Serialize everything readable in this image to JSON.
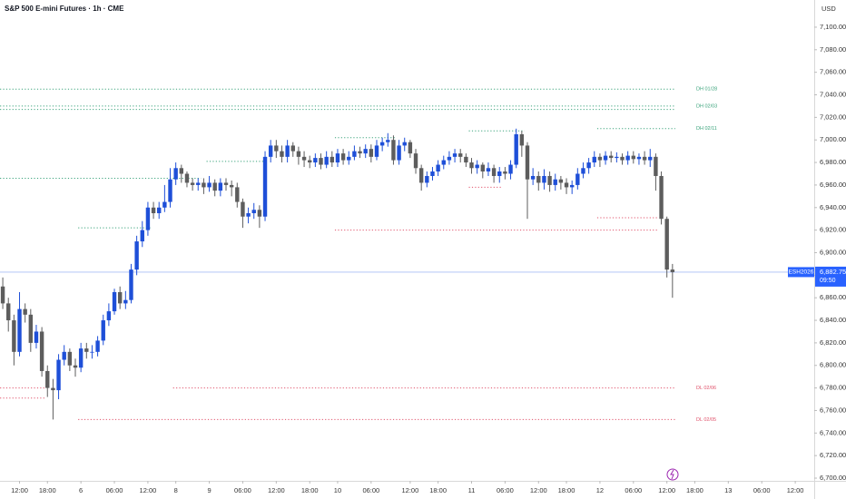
{
  "chart_data": {
    "type": "candlestick",
    "title": "S&P 500 E-mini Futures · 1h · CME",
    "currency": "USD",
    "up_color": "#1e4fd8",
    "down_color": "#5d5d5d",
    "x": [
      0,
      1,
      2,
      3,
      4,
      5,
      6,
      7,
      8,
      9,
      10,
      11,
      12,
      13,
      14,
      15,
      16,
      17,
      18,
      19,
      20,
      21,
      22,
      23,
      24,
      25,
      26,
      27,
      28,
      29,
      30,
      31,
      32,
      33,
      34,
      35,
      36,
      37,
      38,
      39,
      40,
      41,
      42,
      43,
      44,
      45,
      46,
      47,
      48,
      49,
      50,
      51,
      52,
      53,
      54,
      55,
      56,
      57,
      58,
      59,
      60,
      61,
      62,
      63,
      64,
      65,
      66,
      67,
      68,
      69,
      70,
      71,
      72,
      73,
      74,
      75,
      76,
      77,
      78,
      79,
      80,
      81,
      82,
      83,
      84,
      85,
      86,
      87,
      88,
      89,
      90,
      91,
      92,
      93,
      94,
      95,
      96,
      97,
      98,
      99,
      100,
      101,
      102,
      103,
      104,
      105,
      106,
      107,
      108,
      109,
      110,
      111,
      112,
      113,
      114,
      115,
      116,
      117,
      118,
      119,
      120
    ],
    "open": [
      6870,
      6855,
      6840,
      6812,
      6850,
      6845,
      6820,
      6830,
      6795,
      6780,
      6778,
      6805,
      6812,
      6800,
      6798,
      6815,
      6812,
      6812,
      6822,
      6840,
      6848,
      6865,
      6855,
      6858,
      6885,
      6910,
      6920,
      6940,
      6935,
      6940,
      6945,
      6965,
      6975,
      6970,
      6962,
      6960,
      6962,
      6958,
      6962,
      6955,
      6962,
      6960,
      6958,
      6945,
      6932,
      6935,
      6938,
      6932,
      6985,
      6995,
      6990,
      6985,
      6995,
      6990,
      6985,
      6982,
      6980,
      6984,
      6978,
      6985,
      6980,
      6988,
      6982,
      6985,
      6990,
      6988,
      6992,
      6985,
      6995,
      6998,
      7000,
      6982,
      6995,
      6998,
      6988,
      6975,
      6962,
      6968,
      6972,
      6978,
      6982,
      6985,
      6988,
      6985,
      6980,
      6975,
      6978,
      6972,
      6975,
      6968,
      6972,
      6970,
      6978,
      7005,
      6995,
      6965,
      6968,
      6962,
      6968,
      6960,
      6965,
      6962,
      6958,
      6960,
      6970,
      6975,
      6980,
      6985,
      6982,
      6986,
      6984,
      6985,
      6982,
      6986,
      6983,
      6985,
      6982,
      6985,
      6968,
      6930,
      6885
    ],
    "high": [
      6878,
      6860,
      6845,
      6865,
      6855,
      6850,
      6836,
      6834,
      6800,
      6788,
      6810,
      6818,
      6815,
      6806,
      6820,
      6820,
      6818,
      6826,
      6845,
      6855,
      6868,
      6870,
      6866,
      6890,
      6915,
      6928,
      6945,
      6945,
      6945,
      6960,
      6975,
      6980,
      6978,
      6972,
      6966,
      6966,
      6966,
      6968,
      6965,
      6966,
      6966,
      6964,
      6962,
      6948,
      6940,
      6944,
      6942,
      6990,
      7000,
      7000,
      6995,
      7000,
      6998,
      6994,
      6990,
      6986,
      6988,
      6988,
      6990,
      6990,
      6992,
      6992,
      6990,
      6995,
      6994,
      6996,
      6996,
      7000,
      7002,
      7006,
      7004,
      7000,
      7002,
      7000,
      6992,
      6978,
      6972,
      6976,
      6982,
      6986,
      6990,
      6992,
      6992,
      6988,
      6984,
      6982,
      6980,
      6980,
      6978,
      6976,
      6976,
      6982,
      7010,
      7008,
      6998,
      6975,
      6972,
      6974,
      6972,
      6970,
      6968,
      6966,
      6964,
      6975,
      6980,
      6984,
      6990,
      6988,
      6990,
      6990,
      6989,
      6988,
      6990,
      6990,
      6988,
      6990,
      6992,
      6988,
      6972,
      6932,
      6890
    ],
    "low": [
      6850,
      6830,
      6800,
      6808,
      6838,
      6812,
      6815,
      6790,
      6772,
      6752,
      6770,
      6800,
      6795,
      6790,
      6794,
      6806,
      6806,
      6808,
      6818,
      6835,
      6845,
      6850,
      6850,
      6855,
      6880,
      6905,
      6915,
      6930,
      6930,
      6936,
      6940,
      6960,
      6962,
      6958,
      6955,
      6955,
      6952,
      6954,
      6950,
      6950,
      6955,
      6950,
      6940,
      6922,
      6926,
      6930,
      6922,
      6928,
      6980,
      6984,
      6980,
      6980,
      6985,
      6978,
      6976,
      6975,
      6976,
      6974,
      6975,
      6976,
      6976,
      6978,
      6978,
      6982,
      6984,
      6984,
      6980,
      6982,
      6990,
      6994,
      6978,
      6978,
      6990,
      6984,
      6970,
      6955,
      6958,
      6964,
      6968,
      6974,
      6978,
      6980,
      6980,
      6976,
      6970,
      6970,
      6966,
      6968,
      6962,
      6962,
      6965,
      6965,
      6975,
      6985,
      6930,
      6960,
      6955,
      6956,
      6954,
      6955,
      6956,
      6952,
      6952,
      6956,
      6966,
      6970,
      6976,
      6976,
      6978,
      6980,
      6980,
      6978,
      6978,
      6979,
      6978,
      6978,
      6976,
      6955,
      6925,
      6878,
      6860
    ],
    "close": [
      6855,
      6840,
      6812,
      6850,
      6845,
      6820,
      6830,
      6795,
      6780,
      6778,
      6805,
      6812,
      6800,
      6798,
      6815,
      6812,
      6812,
      6822,
      6840,
      6848,
      6865,
      6855,
      6858,
      6885,
      6910,
      6920,
      6940,
      6935,
      6940,
      6945,
      6965,
      6975,
      6970,
      6962,
      6960,
      6962,
      6958,
      6962,
      6955,
      6962,
      6960,
      6958,
      6945,
      6932,
      6935,
      6938,
      6932,
      6985,
      6995,
      6990,
      6985,
      6995,
      6990,
      6985,
      6982,
      6980,
      6984,
      6978,
      6985,
      6980,
      6988,
      6982,
      6985,
      6990,
      6988,
      6992,
      6985,
      6995,
      6998,
      7000,
      6982,
      6995,
      6998,
      6988,
      6975,
      6962,
      6968,
      6972,
      6978,
      6982,
      6985,
      6988,
      6985,
      6980,
      6975,
      6978,
      6972,
      6975,
      6968,
      6972,
      6970,
      6978,
      7005,
      6995,
      6965,
      6968,
      6962,
      6968,
      6960,
      6965,
      6962,
      6958,
      6960,
      6970,
      6975,
      6980,
      6985,
      6982,
      6986,
      6984,
      6985,
      6982,
      6986,
      6983,
      6985,
      6982,
      6985,
      6968,
      6930,
      6885,
      6882.75
    ],
    "last_price": {
      "symbol": "ESH2026",
      "value": 6882.75,
      "label": "6,882.75",
      "countdown": "09:50"
    },
    "levels": [
      {
        "label": "DH 01/28",
        "value": 7045,
        "from": 0,
        "to": 120,
        "color": "#3aa37b"
      },
      {
        "label": "DH 02/03",
        "value": 7030,
        "from": 0,
        "to": 120,
        "color": "#3aa37b"
      },
      {
        "value": 7027,
        "from": 0,
        "to": 120,
        "color": "#3aa37b"
      },
      {
        "label": "DH 02/11",
        "value": 7010,
        "from": 107,
        "to": 120,
        "color": "#3aa37b"
      },
      {
        "label": "DL 02/06",
        "value": 6780,
        "from": 31,
        "to": 120,
        "color": "#e0526b"
      },
      {
        "label": "DL 02/05",
        "value": 6752,
        "from": 14,
        "to": 120,
        "color": "#e0526b"
      },
      {
        "value": 6966,
        "from": 0,
        "to": 35,
        "color": "#3aa37b"
      },
      {
        "value": 6922,
        "from": 14,
        "to": 26,
        "color": "#3aa37b"
      },
      {
        "value": 6981,
        "from": 37,
        "to": 47,
        "color": "#3aa37b"
      },
      {
        "value": 7002,
        "from": 60,
        "to": 70,
        "color": "#3aa37b"
      },
      {
        "value": 7008,
        "from": 84,
        "to": 93,
        "color": "#3aa37b"
      },
      {
        "value": 6920,
        "from": 60,
        "to": 117,
        "color": "#e0526b"
      },
      {
        "value": 6931,
        "from": 107,
        "to": 117,
        "color": "#e0526b"
      },
      {
        "value": 6958,
        "from": 84,
        "to": 89,
        "color": "#e0526b"
      },
      {
        "value": 6780,
        "from": 0,
        "to": 7,
        "color": "#e0526b"
      },
      {
        "value": 6771,
        "from": 0,
        "to": 7,
        "color": "#e0526b"
      }
    ],
    "xlim": [
      -0.5,
      145.4
    ],
    "xticks": [
      {
        "value": 3,
        "label": "12:00"
      },
      {
        "value": 8,
        "label": "18:00"
      },
      {
        "value": 14,
        "label": "6"
      },
      {
        "value": 20,
        "label": "06:00"
      },
      {
        "value": 26,
        "label": "12:00"
      },
      {
        "value": 31,
        "label": "8"
      },
      {
        "value": 37,
        "label": "9"
      },
      {
        "value": 43,
        "label": "06:00"
      },
      {
        "value": 49,
        "label": "12:00"
      },
      {
        "value": 55,
        "label": "18:00"
      },
      {
        "value": 60,
        "label": "10"
      },
      {
        "value": 66,
        "label": "06:00"
      },
      {
        "value": 73,
        "label": "12:00"
      },
      {
        "value": 78,
        "label": "18:00"
      },
      {
        "value": 84,
        "label": "11"
      },
      {
        "value": 90,
        "label": "06:00"
      },
      {
        "value": 96,
        "label": "12:00"
      },
      {
        "value": 101,
        "label": "18:00"
      },
      {
        "value": 107,
        "label": "12"
      },
      {
        "value": 113,
        "label": "06:00"
      },
      {
        "value": 119,
        "label": "12:00"
      },
      {
        "value": 124,
        "label": "18:00"
      },
      {
        "value": 130,
        "label": "13"
      },
      {
        "value": 136,
        "label": "06:00"
      },
      {
        "value": 142,
        "label": "12:00"
      }
    ],
    "ylim": [
      6697.6,
      7124.1
    ],
    "yticks": [
      {
        "value": 6700,
        "label": "6,700.00"
      },
      {
        "value": 6720,
        "label": "6,720.00"
      },
      {
        "value": 6740,
        "label": "6,740.00"
      },
      {
        "value": 6760,
        "label": "6,760.00"
      },
      {
        "value": 6780,
        "label": "6,780.00"
      },
      {
        "value": 6800,
        "label": "6,800.00"
      },
      {
        "value": 6820,
        "label": "6,820.00"
      },
      {
        "value": 6840,
        "label": "6,840.00"
      },
      {
        "value": 6860,
        "label": "6,860.00"
      },
      {
        "value": 6880,
        "label": "6,880.00"
      },
      {
        "value": 6900,
        "label": "6,900.00"
      },
      {
        "value": 6920,
        "label": "6,920.00"
      },
      {
        "value": 6940,
        "label": "6,940.00"
      },
      {
        "value": 6960,
        "label": "6,960.00"
      },
      {
        "value": 6980,
        "label": "6,980.00"
      },
      {
        "value": 7000,
        "label": "7,000.00"
      },
      {
        "value": 7020,
        "label": "7,020.00"
      },
      {
        "value": 7040,
        "label": "7,040.00"
      },
      {
        "value": 7060,
        "label": "7,060.00"
      },
      {
        "value": 7080,
        "label": "7,080.00"
      },
      {
        "value": 7100,
        "label": "7,100.00"
      }
    ]
  }
}
